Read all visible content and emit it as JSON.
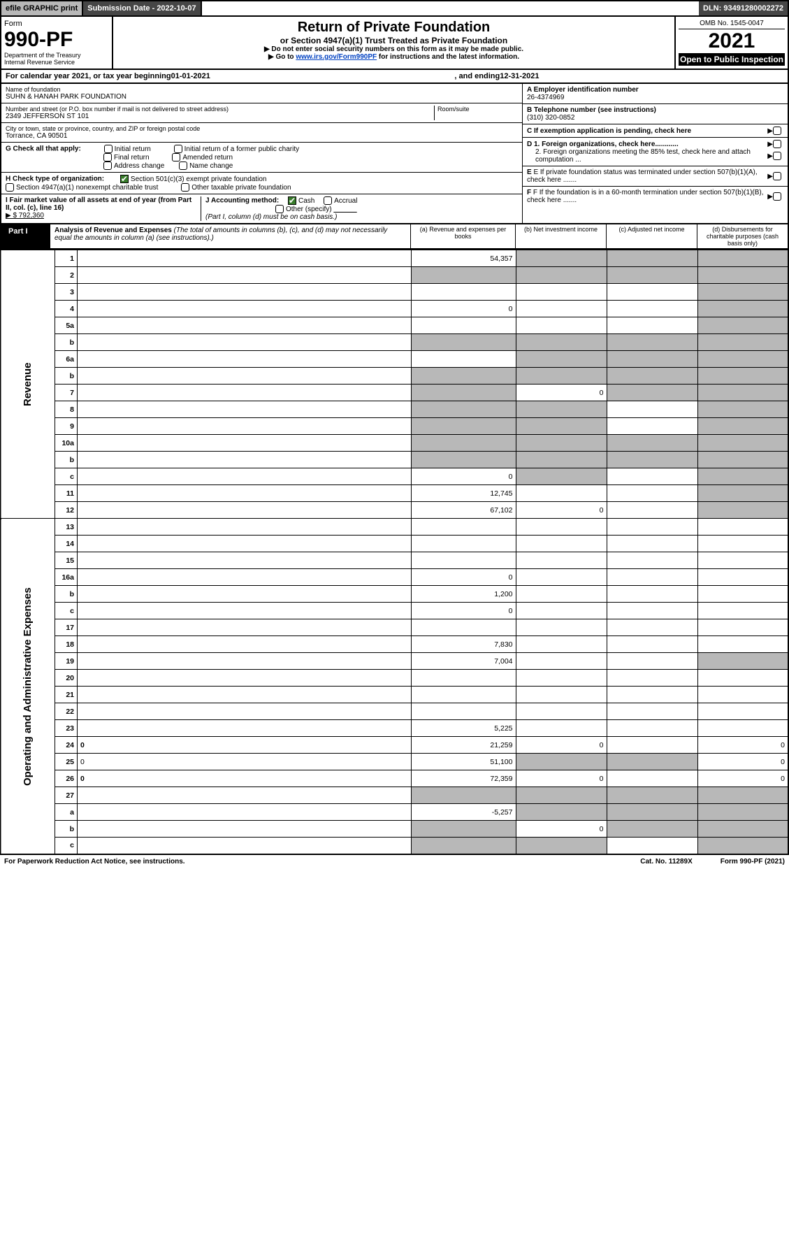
{
  "top": {
    "efile": "efile GRAPHIC print",
    "sub_date_lbl": "Submission Date - 2022-10-07",
    "dln": "DLN: 93491280002272"
  },
  "header": {
    "form_word": "Form",
    "form_no": "990-PF",
    "dept": "Department of the Treasury",
    "irs": "Internal Revenue Service",
    "title": "Return of Private Foundation",
    "subtitle": "or Section 4947(a)(1) Trust Treated as Private Foundation",
    "instr1": "▶ Do not enter social security numbers on this form as it may be made public.",
    "instr2_pre": "▶ Go to ",
    "instr2_link": "www.irs.gov/Form990PF",
    "instr2_post": " for instructions and the latest information.",
    "omb": "OMB No. 1545-0047",
    "year": "2021",
    "open": "Open to Public Inspection"
  },
  "cal": {
    "text_pre": "For calendar year 2021, or tax year beginning ",
    "begin": "01-01-2021",
    "mid": " , and ending ",
    "end": "12-31-2021"
  },
  "info": {
    "name_lbl": "Name of foundation",
    "name": "SUHN & HANAH PARK FOUNDATION",
    "addr_lbl": "Number and street (or P.O. box number if mail is not delivered to street address)",
    "addr": "2349 JEFFERSON ST 101",
    "room_lbl": "Room/suite",
    "city_lbl": "City or town, state or province, country, and ZIP or foreign postal code",
    "city": "Torrance, CA  90501",
    "g_lbl": "G Check all that apply:",
    "g_opts": [
      "Initial return",
      "Final return",
      "Address change",
      "Initial return of a former public charity",
      "Amended return",
      "Name change"
    ],
    "h_lbl": "H Check type of organization:",
    "h_opt1": "Section 501(c)(3) exempt private foundation",
    "h_opt2": "Section 4947(a)(1) nonexempt charitable trust",
    "h_opt3": "Other taxable private foundation",
    "i_lbl": "I Fair market value of all assets at end of year (from Part II, col. (c), line 16)",
    "i_val": "▶ $  792,360",
    "j_lbl": "J Accounting method:",
    "j_cash": "Cash",
    "j_accrual": "Accrual",
    "j_other": "Other (specify)",
    "j_note": "(Part I, column (d) must be on cash basis.)",
    "a_lbl": "A Employer identification number",
    "a_val": "26-4374969",
    "b_lbl": "B Telephone number (see instructions)",
    "b_val": "(310) 320-0852",
    "c_lbl": "C If exemption application is pending, check here",
    "d1_lbl": "D 1. Foreign organizations, check here............",
    "d2_lbl": "2. Foreign organizations meeting the 85% test, check here and attach computation ...",
    "e_lbl": "E If private foundation status was terminated under section 507(b)(1)(A), check here .......",
    "f_lbl": "F If the foundation is in a 60-month termination under section 507(b)(1)(B), check here .......",
    "arrow": "▶"
  },
  "part1": {
    "tag": "Part I",
    "title": "Analysis of Revenue and Expenses",
    "note": " (The total of amounts in columns (b), (c), and (d) may not necessarily equal the amounts in column (a) (see instructions).)",
    "col_a": "(a)  Revenue and expenses per books",
    "col_b": "(b)  Net investment income",
    "col_c": "(c)  Adjusted net income",
    "col_d": "(d)  Disbursements for charitable purposes (cash basis only)"
  },
  "side_labels": {
    "rev": "Revenue",
    "exp": "Operating and Administrative Expenses"
  },
  "rows": [
    {
      "n": "1",
      "d": "",
      "a": "54,357",
      "b": "",
      "c": "",
      "sb": true,
      "sc": true,
      "sd": true
    },
    {
      "n": "2",
      "d": "",
      "a": "",
      "b": "",
      "c": "",
      "sa": true,
      "sb": true,
      "sc": true,
      "sd": true
    },
    {
      "n": "3",
      "d": "",
      "a": "",
      "b": "",
      "c": "",
      "sd": true
    },
    {
      "n": "4",
      "d": "",
      "a": "0",
      "b": "",
      "c": "",
      "sd": true
    },
    {
      "n": "5a",
      "d": "",
      "a": "",
      "b": "",
      "c": "",
      "sd": true
    },
    {
      "n": "b",
      "d": "",
      "a": "",
      "b": "",
      "c": "",
      "sa": true,
      "sb": true,
      "sc": true,
      "sd": true
    },
    {
      "n": "6a",
      "d": "",
      "a": "",
      "b": "",
      "c": "",
      "sb": true,
      "sc": true,
      "sd": true
    },
    {
      "n": "b",
      "d": "",
      "a": "",
      "b": "",
      "c": "",
      "sa": true,
      "sb": true,
      "sc": true,
      "sd": true
    },
    {
      "n": "7",
      "d": "",
      "a": "",
      "b": "0",
      "c": "",
      "sa": true,
      "sc": true,
      "sd": true
    },
    {
      "n": "8",
      "d": "",
      "a": "",
      "b": "",
      "c": "",
      "sa": true,
      "sb": true,
      "sd": true
    },
    {
      "n": "9",
      "d": "",
      "a": "",
      "b": "",
      "c": "",
      "sa": true,
      "sb": true,
      "sd": true
    },
    {
      "n": "10a",
      "d": "",
      "a": "",
      "b": "",
      "c": "",
      "sa": true,
      "sb": true,
      "sc": true,
      "sd": true
    },
    {
      "n": "b",
      "d": "",
      "a": "",
      "b": "",
      "c": "",
      "sa": true,
      "sb": true,
      "sc": true,
      "sd": true
    },
    {
      "n": "c",
      "d": "",
      "a": "0",
      "b": "",
      "c": "",
      "sb": true,
      "sd": true
    },
    {
      "n": "11",
      "d": "",
      "a": "12,745",
      "b": "",
      "c": "",
      "sd": true
    },
    {
      "n": "12",
      "d": "",
      "a": "67,102",
      "b": "0",
      "c": "",
      "bold": true,
      "sd": true
    },
    {
      "n": "13",
      "d": "",
      "a": "",
      "b": "",
      "c": ""
    },
    {
      "n": "14",
      "d": "",
      "a": "",
      "b": "",
      "c": ""
    },
    {
      "n": "15",
      "d": "",
      "a": "",
      "b": "",
      "c": ""
    },
    {
      "n": "16a",
      "d": "",
      "a": "0",
      "b": "",
      "c": ""
    },
    {
      "n": "b",
      "d": "",
      "a": "1,200",
      "b": "",
      "c": ""
    },
    {
      "n": "c",
      "d": "",
      "a": "0",
      "b": "",
      "c": ""
    },
    {
      "n": "17",
      "d": "",
      "a": "",
      "b": "",
      "c": ""
    },
    {
      "n": "18",
      "d": "",
      "a": "7,830",
      "b": "",
      "c": ""
    },
    {
      "n": "19",
      "d": "",
      "a": "7,004",
      "b": "",
      "c": "",
      "sd": true
    },
    {
      "n": "20",
      "d": "",
      "a": "",
      "b": "",
      "c": ""
    },
    {
      "n": "21",
      "d": "",
      "a": "",
      "b": "",
      "c": ""
    },
    {
      "n": "22",
      "d": "",
      "a": "",
      "b": "",
      "c": ""
    },
    {
      "n": "23",
      "d": "",
      "a": "5,225",
      "b": "",
      "c": ""
    },
    {
      "n": "24",
      "d": "0",
      "a": "21,259",
      "b": "0",
      "c": "",
      "bold": true
    },
    {
      "n": "25",
      "d": "0",
      "a": "51,100",
      "b": "",
      "c": "",
      "sb": true,
      "sc": true
    },
    {
      "n": "26",
      "d": "0",
      "a": "72,359",
      "b": "0",
      "c": "",
      "bold": true
    },
    {
      "n": "27",
      "d": "",
      "a": "",
      "b": "",
      "c": "",
      "sa": true,
      "sb": true,
      "sc": true,
      "sd": true
    },
    {
      "n": "a",
      "d": "",
      "a": "-5,257",
      "b": "",
      "c": "",
      "bold": true,
      "sb": true,
      "sc": true,
      "sd": true
    },
    {
      "n": "b",
      "d": "",
      "a": "",
      "b": "0",
      "c": "",
      "bold": true,
      "sa": true,
      "sc": true,
      "sd": true
    },
    {
      "n": "c",
      "d": "",
      "a": "",
      "b": "",
      "c": "",
      "bold": true,
      "sa": true,
      "sb": true,
      "sd": true
    }
  ],
  "footer": {
    "left": "For Paperwork Reduction Act Notice, see instructions.",
    "mid": "Cat. No. 11289X",
    "right": "Form 990-PF (2021)"
  },
  "colors": {
    "shade": "#b8b8b8",
    "black": "#000000",
    "darkbar": "#464646",
    "link": "#0041c2",
    "check_green": "#387c2b"
  }
}
